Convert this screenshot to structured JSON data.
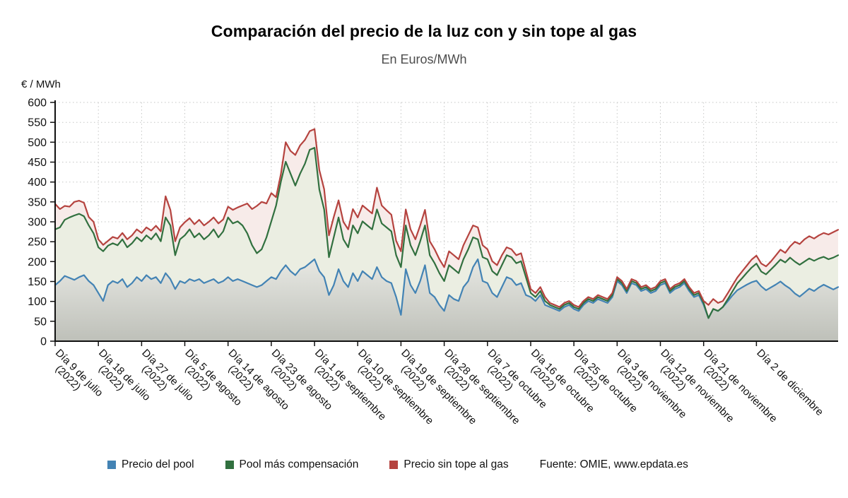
{
  "title": "Comparación del precio de la luz con y sin tope al gas",
  "subtitle": "En Euros/MWh",
  "y_axis_title": "€ / MWh",
  "source": "Fuente: OMIE, www.epdata.es",
  "chart_data": {
    "type": "area",
    "title": "Comparación del precio de la luz con y sin tope al gas",
    "subtitle": "En Euros/MWh",
    "ylabel": "€ / MWh",
    "ylim": [
      0,
      600
    ],
    "y_tick_step": 50,
    "grid": true,
    "legend_position": "bottom",
    "x_tick_indices": [
      0,
      9,
      18,
      27,
      36,
      45,
      54,
      63,
      72,
      81,
      90,
      99,
      108,
      117,
      126,
      135,
      146
    ],
    "x_tick_labels": [
      {
        "line1": "Día 9 de julio",
        "line2": "(2022)"
      },
      {
        "line1": "Día 18 de julio",
        "line2": "(2022)"
      },
      {
        "line1": "Día 27 de julio",
        "line2": "(2022)"
      },
      {
        "line1": "Día 5 de agosto",
        "line2": "(2022)"
      },
      {
        "line1": "Día 14 de agosto",
        "line2": "(2022)"
      },
      {
        "line1": "Día 23 de agosto",
        "line2": "(2022)"
      },
      {
        "line1": "Día 1 de septiembre",
        "line2": "(2022)"
      },
      {
        "line1": "Día 10 de septiembre",
        "line2": "(2022)"
      },
      {
        "line1": "Día 19 de septiembre",
        "line2": "(2022)"
      },
      {
        "line1": "Día 28 de septiembre",
        "line2": "(2022)"
      },
      {
        "line1": "Día 7 de octubre",
        "line2": "(2022)"
      },
      {
        "line1": "Día 16 de octubre",
        "line2": "(2022)"
      },
      {
        "line1": "Día 25 de octubre",
        "line2": "(2022)"
      },
      {
        "line1": "Día 3 de noviembre",
        "line2": "(2022)"
      },
      {
        "line1": "Día 12 de noviembre",
        "line2": "(2022)"
      },
      {
        "line1": "Día 21 de noviembre",
        "line2": "(2022)"
      },
      {
        "line1": "Día 2 de diciembre",
        "line2": ""
      }
    ],
    "series": [
      {
        "name": "Precio del pool",
        "color": "#4383b4",
        "fill_gradient": [
          "#e7e8e3",
          "#bec0b9"
        ],
        "values": [
          141,
          151,
          164,
          159,
          154,
          161,
          166,
          151,
          141,
          121,
          101,
          141,
          151,
          146,
          156,
          136,
          146,
          161,
          151,
          166,
          156,
          161,
          146,
          171,
          156,
          131,
          151,
          146,
          156,
          151,
          156,
          146,
          151,
          156,
          146,
          151,
          161,
          151,
          156,
          151,
          146,
          141,
          136,
          141,
          151,
          161,
          156,
          176,
          191,
          176,
          166,
          181,
          186,
          196,
          206,
          176,
          161,
          116,
          141,
          181,
          151,
          136,
          171,
          151,
          176,
          166,
          156,
          186,
          161,
          151,
          146,
          111,
          66,
          181,
          141,
          121,
          151,
          191,
          121,
          111,
          91,
          76,
          116,
          106,
          101,
          136,
          151,
          186,
          206,
          151,
          146,
          121,
          111,
          136,
          161,
          156,
          141,
          146,
          116,
          111,
          101,
          116,
          91,
          86,
          81,
          76,
          86,
          91,
          81,
          76,
          91,
          101,
          96,
          106,
          101,
          96,
          111,
          151,
          141,
          121,
          146,
          141,
          126,
          131,
          121,
          126,
          141,
          146,
          121,
          131,
          136,
          146,
          126,
          111,
          116,
          91,
          58,
          81,
          76,
          86,
          100,
          115,
          128,
          135,
          142,
          148,
          152,
          138,
          128,
          135,
          142,
          150,
          140,
          132,
          120,
          112,
          122,
          132,
          126,
          135,
          142,
          136,
          130,
          136
        ]
      },
      {
        "name": "Pool más compensación",
        "color": "#31703f",
        "fill": "#ebeee2",
        "values": [
          281,
          286,
          305,
          311,
          316,
          320,
          314,
          291,
          271,
          236,
          226,
          240,
          246,
          241,
          256,
          236,
          246,
          261,
          251,
          266,
          256,
          271,
          251,
          311,
          291,
          216,
          256,
          266,
          281,
          261,
          271,
          256,
          266,
          281,
          261,
          276,
          311,
          296,
          301,
          291,
          271,
          241,
          221,
          231,
          261,
          301,
          341,
          401,
          451,
          421,
          391,
          421,
          446,
          481,
          486,
          381,
          331,
          211,
          261,
          311,
          256,
          236,
          291,
          271,
          301,
          291,
          281,
          331,
          296,
          286,
          276,
          216,
          186,
          291,
          241,
          216,
          251,
          291,
          216,
          196,
          171,
          151,
          191,
          181,
          171,
          206,
          231,
          261,
          256,
          211,
          206,
          176,
          166,
          191,
          216,
          211,
          196,
          201,
          161,
          121,
          111,
          126,
          101,
          91,
          86,
          81,
          91,
          96,
          86,
          81,
          96,
          106,
          101,
          111,
          106,
          101,
          116,
          156,
          146,
          126,
          151,
          146,
          131,
          136,
          126,
          131,
          146,
          151,
          126,
          136,
          141,
          151,
          131,
          116,
          121,
          96,
          58,
          81,
          76,
          86,
          105,
          125,
          145,
          158,
          172,
          185,
          195,
          175,
          168,
          180,
          192,
          205,
          198,
          210,
          200,
          192,
          200,
          208,
          202,
          208,
          212,
          206,
          210,
          216
        ]
      },
      {
        "name": "Precio sin tope al gas",
        "color": "#b5433f",
        "fill": "#f7ebe9",
        "values": [
          345,
          332,
          340,
          338,
          350,
          353,
          348,
          312,
          300,
          256,
          242,
          252,
          262,
          258,
          272,
          256,
          266,
          281,
          272,
          286,
          278,
          290,
          276,
          364,
          330,
          251,
          286,
          299,
          309,
          294,
          305,
          291,
          300,
          311,
          296,
          306,
          338,
          330,
          336,
          341,
          346,
          332,
          340,
          350,
          346,
          372,
          362,
          420,
          500,
          478,
          468,
          492,
          506,
          528,
          533,
          430,
          382,
          266,
          312,
          354,
          300,
          281,
          332,
          311,
          341,
          331,
          321,
          386,
          341,
          329,
          318,
          252,
          226,
          331,
          281,
          256,
          291,
          330,
          251,
          231,
          206,
          186,
          226,
          216,
          206,
          241,
          266,
          291,
          286,
          241,
          231,
          201,
          191,
          216,
          236,
          231,
          216,
          221,
          176,
          131,
          121,
          136,
          111,
          96,
          91,
          86,
          96,
          101,
          91,
          86,
          101,
          111,
          106,
          116,
          111,
          106,
          121,
          161,
          151,
          131,
          156,
          151,
          136,
          141,
          131,
          136,
          151,
          156,
          131,
          141,
          146,
          156,
          136,
          121,
          126,
          101,
          91,
          106,
          96,
          101,
          120,
          140,
          160,
          175,
          190,
          205,
          215,
          195,
          188,
          200,
          215,
          230,
          222,
          238,
          250,
          244,
          256,
          264,
          258,
          266,
          272,
          268,
          274,
          280
        ]
      }
    ]
  }
}
